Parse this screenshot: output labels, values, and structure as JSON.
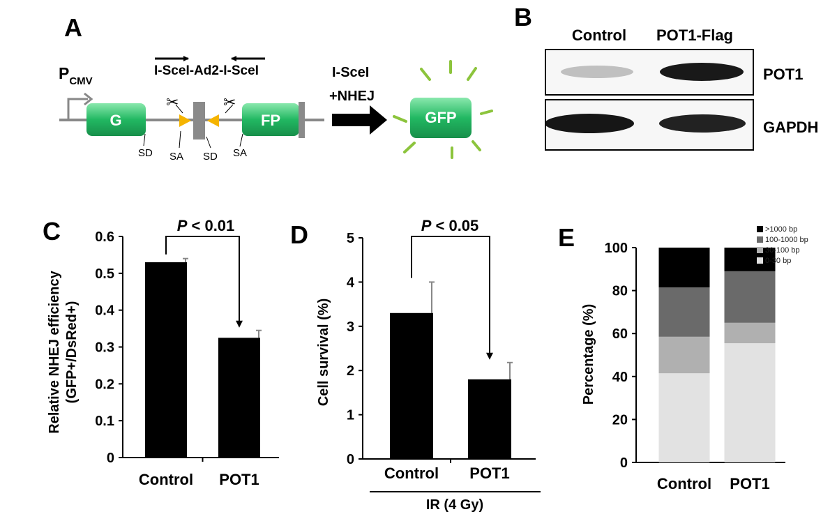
{
  "panels": {
    "a": {
      "letter": "A",
      "promoter_main": "P",
      "promoter_sub": "CMV",
      "construct_label": "I-SceI-Ad2-I-SceI",
      "exon_g": "G",
      "exon_fp": "FP",
      "sd1": "SD",
      "sa1": "SA",
      "sd2": "SD",
      "sa2": "SA",
      "arrow_line1": "I-SceI",
      "arrow_line2": "+NHEJ",
      "gfp": "GFP",
      "colors": {
        "exon": "#1fae5a",
        "exon_light": "#7fe3a3",
        "triangle": "#f5b400",
        "rays": "#8cc43c",
        "spacer": "#8a8a8a"
      }
    },
    "b": {
      "letter": "B",
      "lanes": [
        "Control",
        "POT1-Flag"
      ],
      "rows": [
        {
          "label": "POT1",
          "band_intensity": [
            0.25,
            0.95
          ]
        },
        {
          "label": "GAPDH",
          "band_intensity": [
            0.95,
            0.9
          ]
        }
      ]
    },
    "c": {
      "letter": "C",
      "sig": "P < 0.01",
      "sig_p": "P",
      "sig_rest": " < 0.01"
    },
    "d": {
      "letter": "D",
      "sig": "P < 0.05",
      "sig_p": "P",
      "sig_rest": " < 0.05",
      "group_label": "IR (4 Gy)"
    },
    "e": {
      "letter": "E"
    }
  },
  "chart_data": [
    {
      "panel": "C",
      "type": "bar",
      "categories": [
        "Control",
        "POT1"
      ],
      "values": [
        0.53,
        0.325
      ],
      "errors": [
        0.01,
        0.02
      ],
      "ylabel_line1": "Relative NHEJ efficiency",
      "ylabel_line2": "(GFP+/DsRed+)",
      "ylim": [
        0,
        0.6
      ],
      "yticks": [
        "0",
        "0.1",
        "0.2",
        "0.3",
        "0.4",
        "0.5",
        "0.6"
      ],
      "color": "#000000"
    },
    {
      "panel": "D",
      "type": "bar",
      "categories": [
        "Control",
        "POT1"
      ],
      "values": [
        3.3,
        1.8
      ],
      "errors": [
        0.7,
        0.38
      ],
      "ylabel": "Cell survival (%)",
      "ylim": [
        0,
        5
      ],
      "yticks": [
        "0",
        "1",
        "2",
        "3",
        "4",
        "5"
      ],
      "color": "#000000"
    },
    {
      "panel": "E",
      "type": "bar",
      "stacked": true,
      "categories": [
        "Control",
        "POT1"
      ],
      "ylabel": "Percentage (%)",
      "ylim": [
        0,
        100
      ],
      "yticks": [
        "0",
        "20",
        "40",
        "60",
        "80",
        "100"
      ],
      "legend_position": "top-right",
      "series": [
        {
          "name": "0-30 bp",
          "values": [
            41.5,
            55.5
          ],
          "color": "#e2e2e2"
        },
        {
          "name": "30-100 bp",
          "values": [
            17,
            9.5
          ],
          "color": "#b0b0b0"
        },
        {
          "name": "100-1000 bp",
          "values": [
            23,
            24
          ],
          "color": "#6a6a6a"
        },
        {
          "name": ">1000 bp",
          "values": [
            18.5,
            11
          ],
          "color": "#000000"
        }
      ]
    }
  ]
}
